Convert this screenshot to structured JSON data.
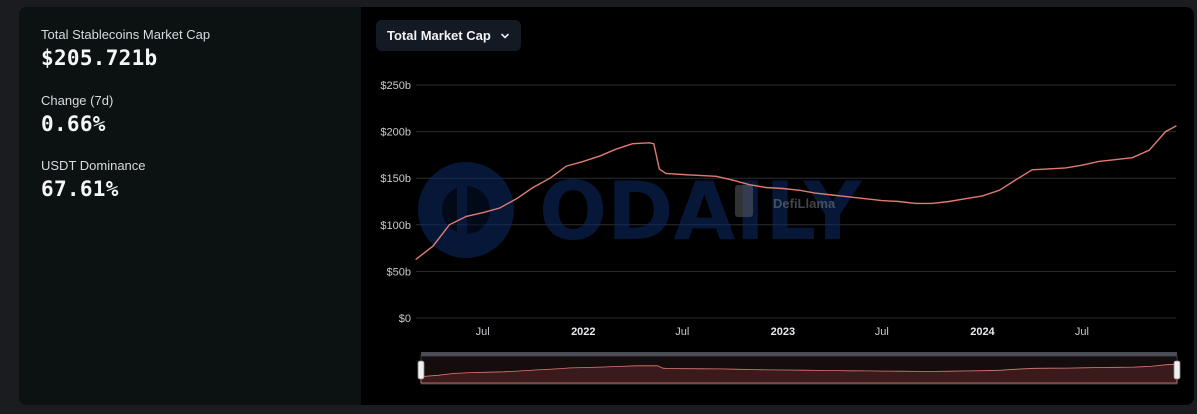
{
  "stats": [
    {
      "label": "Total Stablecoins Market Cap",
      "value": "$205.721b"
    },
    {
      "label": "Change (7d)",
      "value": "0.66%"
    },
    {
      "label": "USDT Dominance",
      "value": "67.61%"
    }
  ],
  "dropdown": {
    "label": "Total Market Cap",
    "icon": "chevron-down-icon"
  },
  "watermarks": {
    "odaily": "ODAILY",
    "defillama": "DefiLlama"
  },
  "colors": {
    "line": "#e07b72",
    "grid": "#2a2d33",
    "accent": "#0b2a66"
  },
  "chart_data": {
    "type": "line",
    "grid": "horizontal",
    "y_ticks": [
      "$0",
      "$50b",
      "$100b",
      "$150b",
      "$200b",
      "$250b"
    ],
    "y_tick_values": [
      0,
      50,
      100,
      150,
      200,
      250
    ],
    "ylim": [
      0,
      250
    ],
    "y_unit": "billion USD",
    "x_ticks": [
      {
        "label": "Jul",
        "date": "2021-07-01",
        "bold": false
      },
      {
        "label": "2022",
        "date": "2022-01-01",
        "bold": true
      },
      {
        "label": "Jul",
        "date": "2022-07-01",
        "bold": false
      },
      {
        "label": "2023",
        "date": "2023-01-01",
        "bold": true
      },
      {
        "label": "Jul",
        "date": "2023-07-01",
        "bold": false
      },
      {
        "label": "2024",
        "date": "2024-01-01",
        "bold": true
      },
      {
        "label": "Jul",
        "date": "2024-07-01",
        "bold": false
      }
    ],
    "xlim": [
      "2021-03-01",
      "2024-12-20"
    ],
    "series": [
      {
        "points": [
          [
            "2021-03-01",
            63
          ],
          [
            "2021-04-01",
            77
          ],
          [
            "2021-05-01",
            100
          ],
          [
            "2021-06-01",
            109
          ],
          [
            "2021-07-01",
            113
          ],
          [
            "2021-08-01",
            118
          ],
          [
            "2021-09-01",
            128
          ],
          [
            "2021-10-01",
            140
          ],
          [
            "2021-11-01",
            150
          ],
          [
            "2021-12-01",
            163
          ],
          [
            "2022-01-01",
            168
          ],
          [
            "2022-02-01",
            174
          ],
          [
            "2022-03-01",
            181
          ],
          [
            "2022-04-01",
            187
          ],
          [
            "2022-05-01",
            188
          ],
          [
            "2022-05-10",
            187
          ],
          [
            "2022-05-20",
            160
          ],
          [
            "2022-06-01",
            155
          ],
          [
            "2022-07-01",
            154
          ],
          [
            "2022-08-01",
            153
          ],
          [
            "2022-09-01",
            152
          ],
          [
            "2022-10-01",
            148
          ],
          [
            "2022-11-01",
            143
          ],
          [
            "2022-12-01",
            140
          ],
          [
            "2023-01-01",
            139
          ],
          [
            "2023-02-01",
            137
          ],
          [
            "2023-03-01",
            134
          ],
          [
            "2023-04-01",
            132
          ],
          [
            "2023-05-01",
            130
          ],
          [
            "2023-06-01",
            128
          ],
          [
            "2023-07-01",
            126
          ],
          [
            "2023-08-01",
            125
          ],
          [
            "2023-09-01",
            123
          ],
          [
            "2023-10-01",
            123
          ],
          [
            "2023-11-01",
            125
          ],
          [
            "2023-12-01",
            128
          ],
          [
            "2024-01-01",
            131
          ],
          [
            "2024-02-01",
            137
          ],
          [
            "2024-03-01",
            148
          ],
          [
            "2024-04-01",
            159
          ],
          [
            "2024-05-01",
            160
          ],
          [
            "2024-06-01",
            161
          ],
          [
            "2024-07-01",
            164
          ],
          [
            "2024-08-01",
            168
          ],
          [
            "2024-09-01",
            170
          ],
          [
            "2024-10-01",
            172
          ],
          [
            "2024-11-01",
            180
          ],
          [
            "2024-12-01",
            200
          ],
          [
            "2024-12-20",
            206
          ]
        ]
      }
    ]
  }
}
